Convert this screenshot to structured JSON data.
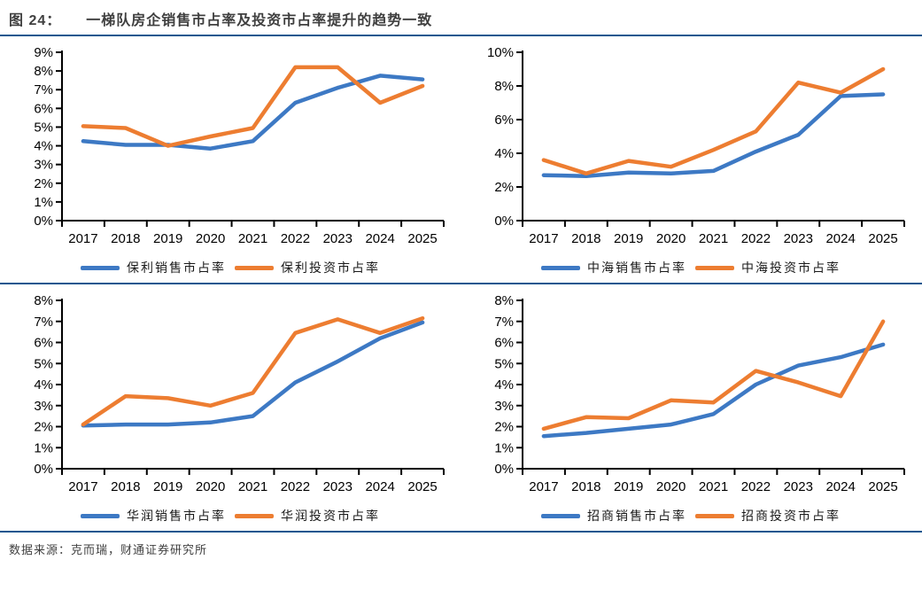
{
  "header": {
    "figure_label": "图 24：",
    "title": "一梯队房企销售市占率及投资市占率提升的趋势一致"
  },
  "footer": {
    "source": "数据来源：克而瑞，财通证券研究所"
  },
  "colors": {
    "sales_line": "#3d79c4",
    "investment_line": "#ed7d31",
    "rule_line": "#16578f",
    "axis": "#000000",
    "title_text": "#3f3f3f"
  },
  "chart_data": [
    {
      "type": "line",
      "company": "保利",
      "categories": [
        "2017",
        "2018",
        "2019",
        "2020",
        "2021",
        "2022",
        "2023",
        "2024",
        "2025"
      ],
      "ylim": [
        0,
        9
      ],
      "ytick_step": 1,
      "ytick_format": "percent",
      "grid": false,
      "legend_position": "bottom",
      "series": [
        {
          "name": "保利销售市占率",
          "color": "#3d79c4",
          "values": [
            4.25,
            4.05,
            4.05,
            3.85,
            4.25,
            6.3,
            7.1,
            7.75,
            7.55
          ]
        },
        {
          "name": "保利投资市占率",
          "color": "#ed7d31",
          "values": [
            5.05,
            4.95,
            4.0,
            4.5,
            4.95,
            8.2,
            8.2,
            6.3,
            7.2
          ]
        }
      ]
    },
    {
      "type": "line",
      "company": "中海",
      "categories": [
        "2017",
        "2018",
        "2019",
        "2020",
        "2021",
        "2022",
        "2023",
        "2024",
        "2025"
      ],
      "ylim": [
        0,
        10
      ],
      "ytick_step": 2,
      "ytick_format": "percent",
      "grid": false,
      "legend_position": "bottom",
      "series": [
        {
          "name": "中海销售市占率",
          "color": "#3d79c4",
          "values": [
            2.7,
            2.65,
            2.85,
            2.8,
            2.95,
            4.1,
            5.1,
            7.4,
            7.5
          ]
        },
        {
          "name": "中海投资市占率",
          "color": "#ed7d31",
          "values": [
            3.6,
            2.8,
            3.55,
            3.2,
            4.2,
            5.3,
            8.2,
            7.6,
            9.0
          ]
        }
      ]
    },
    {
      "type": "line",
      "company": "华润",
      "categories": [
        "2017",
        "2018",
        "2019",
        "2020",
        "2021",
        "2022",
        "2023",
        "2024",
        "2025"
      ],
      "ylim": [
        0,
        8
      ],
      "ytick_step": 1,
      "ytick_format": "percent",
      "grid": false,
      "legend_position": "bottom",
      "series": [
        {
          "name": "华润销售市占率",
          "color": "#3d79c4",
          "values": [
            2.05,
            2.1,
            2.1,
            2.2,
            2.5,
            4.1,
            5.1,
            6.2,
            6.95
          ]
        },
        {
          "name": "华润投资市占率",
          "color": "#ed7d31",
          "values": [
            2.1,
            3.45,
            3.35,
            3.0,
            3.6,
            6.45,
            7.1,
            6.45,
            7.15
          ]
        }
      ]
    },
    {
      "type": "line",
      "company": "招商",
      "categories": [
        "2017",
        "2018",
        "2019",
        "2020",
        "2021",
        "2022",
        "2023",
        "2024",
        "2025"
      ],
      "ylim": [
        0,
        8
      ],
      "ytick_step": 1,
      "ytick_format": "percent",
      "grid": false,
      "legend_position": "bottom",
      "series": [
        {
          "name": "招商销售市占率",
          "color": "#3d79c4",
          "values": [
            1.55,
            1.7,
            1.9,
            2.1,
            2.6,
            4.0,
            4.9,
            5.3,
            5.9
          ]
        },
        {
          "name": "招商投资市占率",
          "color": "#ed7d31",
          "values": [
            1.9,
            2.45,
            2.4,
            3.25,
            3.15,
            4.65,
            4.1,
            3.45,
            7.0
          ]
        }
      ]
    }
  ]
}
